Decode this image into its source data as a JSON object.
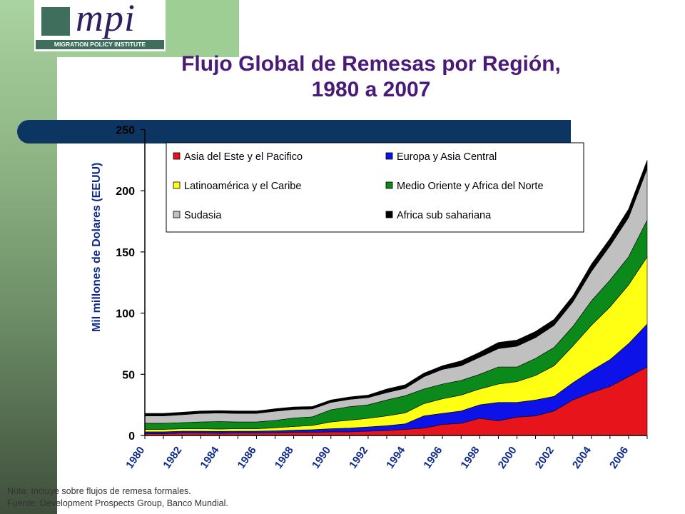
{
  "logo": {
    "wordmark": "mpi",
    "strip": "MIGRATION POLICY INSTITUTE"
  },
  "title_line1": "Flujo Global de Remesas por Región,",
  "title_line2": "1980 a 2007",
  "notes": {
    "line1": "Nota: Incluye sobre flujos de remesa formales.",
    "line2": "Fuente: Development Prospects Group, Banco Mundial."
  },
  "colors": {
    "side_band": "#8fb585",
    "title": "#4a1a78",
    "banner": "#0d3561",
    "axis_text": "#0d2a8a"
  },
  "chart_data": {
    "type": "area",
    "stacked": true,
    "title": "Flujo Global de Remesas por Región, 1980 a 2007",
    "ylabel": "Mil millones de Dolares (EEUU)",
    "xlabel": "",
    "ylim": [
      0,
      250
    ],
    "yticks": [
      0,
      50,
      100,
      150,
      200,
      250
    ],
    "xticklabels": [
      "1980",
      "1982",
      "1984",
      "1986",
      "1988",
      "1990",
      "1992",
      "1994",
      "1996",
      "1998",
      "2000",
      "2002",
      "2004",
      "2006"
    ],
    "legend_position": "top",
    "grid": false,
    "x": [
      1980,
      1981,
      1982,
      1983,
      1984,
      1985,
      1986,
      1987,
      1988,
      1989,
      1990,
      1991,
      1992,
      1993,
      1994,
      1995,
      1996,
      1997,
      1998,
      1999,
      2000,
      2001,
      2002,
      2003,
      2004,
      2005,
      2006,
      2007
    ],
    "series": [
      {
        "name": "Asia del Este y el Pacifico",
        "color": "#e8141b",
        "values": [
          1.5,
          1.5,
          2,
          2,
          1.8,
          2,
          2,
          2.2,
          2.5,
          2.5,
          3,
          3,
          3.5,
          4,
          5,
          6,
          9,
          10,
          14,
          12,
          15,
          16,
          20,
          29,
          35,
          40,
          48,
          56
        ]
      },
      {
        "name": "Europa y Asia Central",
        "color": "#0d12e8",
        "values": [
          1.5,
          1.5,
          1.5,
          1.5,
          1.5,
          1.5,
          1.5,
          1.6,
          1.8,
          2.2,
          2.5,
          3,
          3.5,
          4,
          4.5,
          10,
          9,
          10,
          11,
          15,
          12,
          13,
          12,
          14,
          18,
          22,
          27,
          35
        ]
      },
      {
        "name": "Latinoamérica y el Caribe",
        "color": "#ffff14",
        "values": [
          2,
          2,
          2,
          2,
          2,
          2,
          2,
          2.5,
          3,
          3.5,
          5.5,
          6.5,
          7,
          8,
          9,
          10,
          12,
          13,
          13,
          15,
          17,
          20,
          25,
          30,
          37,
          43,
          48,
          55
        ]
      },
      {
        "name": "Medio Oriente y Africa del Norte",
        "color": "#0b8a1b",
        "values": [
          5,
          5,
          5,
          5.5,
          6,
          5.5,
          5.5,
          6,
          7,
          7,
          10,
          11,
          11,
          13,
          14,
          12,
          12,
          12,
          12,
          14,
          12,
          14,
          15,
          16,
          20,
          22,
          23,
          30
        ]
      },
      {
        "name": "Sudasia",
        "color": "#c0c0c0",
        "values": [
          6,
          6,
          6.5,
          7,
          7,
          7,
          7,
          7.5,
          7,
          6.5,
          6,
          6,
          6,
          6,
          6,
          10,
          12,
          12,
          14,
          15,
          17,
          17,
          18,
          20,
          24,
          28,
          32,
          42
        ]
      },
      {
        "name": "Africa sub sahariana",
        "color": "#000000",
        "values": [
          2,
          2,
          2,
          2,
          2,
          2,
          2,
          2,
          2,
          2,
          2,
          2,
          2,
          3,
          3,
          3,
          3,
          4,
          4,
          5,
          5,
          5,
          5,
          5,
          6,
          6,
          7,
          7
        ]
      }
    ]
  }
}
